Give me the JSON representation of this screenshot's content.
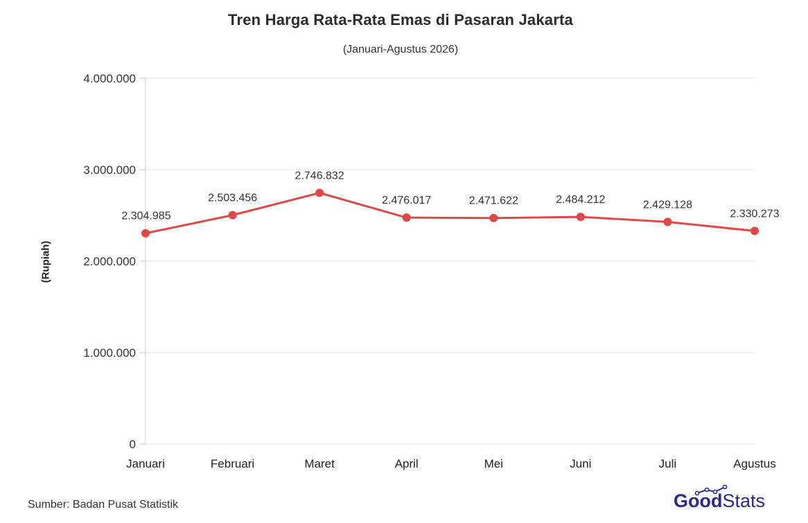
{
  "chart_data": {
    "type": "line",
    "title": "Tren Harga Rata-Rata Emas di Pasaran Jakarta",
    "subtitle": "(Januari-Agustus 2026)",
    "ylabel": "(Rupiah)",
    "xlabel": "",
    "categories": [
      "Januari",
      "Februari",
      "Maret",
      "April",
      "Mei",
      "Juni",
      "Juli",
      "Agustus"
    ],
    "series": [
      {
        "values": [
          2304985,
          2503456,
          2746832,
          2476017,
          2471622,
          2484212,
          2429128,
          2330273
        ],
        "labels": [
          "2.304.985",
          "2.503.456",
          "2.746.832",
          "2.476.017",
          "2.471.622",
          "2.484.212",
          "2.429.128",
          "2.330.273"
        ],
        "color": "#e04848"
      }
    ],
    "ylim": [
      0,
      4000000
    ],
    "yticks": [
      0,
      1000000,
      2000000,
      3000000,
      4000000
    ],
    "ytick_labels": [
      "0",
      "1.000.000",
      "2.000.000",
      "3.000.000",
      "4.000.000"
    ],
    "grid": true
  },
  "footer": {
    "source": "Sumber: Badan Pusat Statistik",
    "logo_good": "Good",
    "logo_stats": "Stats",
    "logo_color": "#2a2a8c"
  }
}
